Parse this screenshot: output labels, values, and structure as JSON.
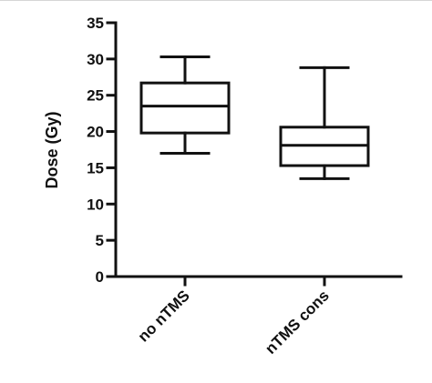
{
  "chart_data": {
    "type": "box",
    "title": "",
    "xlabel": "",
    "ylabel": "Dose (Gy)",
    "ylim": [
      0,
      35
    ],
    "yticks": [
      0,
      5,
      10,
      15,
      20,
      25,
      30,
      35
    ],
    "grid": false,
    "categories": [
      "no nTMS",
      "nTMS cons"
    ],
    "boxes": [
      {
        "category": "no nTMS",
        "min": 17,
        "q1": 19.8,
        "median": 23.5,
        "q3": 26.7,
        "max": 30.3
      },
      {
        "category": "nTMS cons",
        "min": 13.5,
        "q1": 15.3,
        "median": 18.1,
        "q3": 20.6,
        "max": 28.8
      }
    ]
  }
}
